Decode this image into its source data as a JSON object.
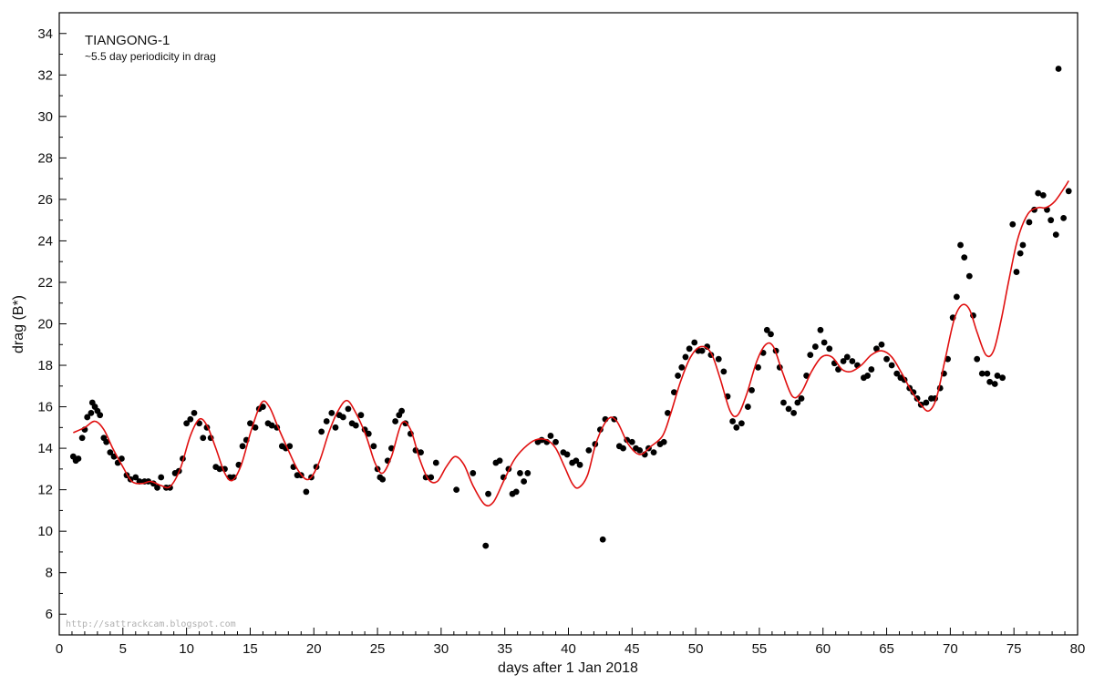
{
  "chart_data": {
    "type": "scatter",
    "title": "TIANGONG-1",
    "subtitle": "~5.5 day periodicity in drag",
    "xlabel": "days after 1 Jan 2018",
    "ylabel": "drag (B*)",
    "xlim": [
      0,
      80
    ],
    "ylim": [
      5,
      35
    ],
    "xticks": [
      0,
      5,
      10,
      15,
      20,
      25,
      30,
      35,
      40,
      45,
      50,
      55,
      60,
      65,
      70,
      75,
      80
    ],
    "yticks": [
      6,
      8,
      10,
      12,
      14,
      16,
      18,
      20,
      22,
      24,
      26,
      28,
      30,
      32,
      34
    ],
    "grid": false,
    "watermark": "http://sattrackcam.blogspot.com",
    "colors": {
      "points": "#000000",
      "fit": "#e01010",
      "axes": "#000000"
    },
    "points": [
      [
        1.1,
        13.6
      ],
      [
        1.3,
        13.4
      ],
      [
        1.5,
        13.5
      ],
      [
        1.8,
        14.5
      ],
      [
        2.0,
        14.9
      ],
      [
        2.2,
        15.5
      ],
      [
        2.5,
        15.7
      ],
      [
        2.6,
        16.2
      ],
      [
        2.8,
        16.0
      ],
      [
        3.0,
        15.8
      ],
      [
        3.2,
        15.6
      ],
      [
        3.5,
        14.5
      ],
      [
        3.7,
        14.3
      ],
      [
        4.0,
        13.8
      ],
      [
        4.3,
        13.6
      ],
      [
        4.6,
        13.3
      ],
      [
        4.9,
        13.5
      ],
      [
        5.3,
        12.7
      ],
      [
        5.6,
        12.5
      ],
      [
        6.0,
        12.6
      ],
      [
        6.3,
        12.4
      ],
      [
        6.7,
        12.4
      ],
      [
        7.0,
        12.4
      ],
      [
        7.4,
        12.3
      ],
      [
        7.7,
        12.1
      ],
      [
        8.0,
        12.6
      ],
      [
        8.4,
        12.1
      ],
      [
        8.7,
        12.1
      ],
      [
        9.1,
        12.8
      ],
      [
        9.4,
        12.9
      ],
      [
        9.7,
        13.5
      ],
      [
        10.0,
        15.2
      ],
      [
        10.3,
        15.4
      ],
      [
        10.6,
        15.7
      ],
      [
        11.0,
        15.2
      ],
      [
        11.3,
        14.5
      ],
      [
        11.6,
        15.0
      ],
      [
        11.9,
        14.5
      ],
      [
        12.3,
        13.1
      ],
      [
        12.6,
        13.0
      ],
      [
        13.0,
        13.0
      ],
      [
        13.4,
        12.6
      ],
      [
        13.7,
        12.6
      ],
      [
        14.1,
        13.2
      ],
      [
        14.4,
        14.1
      ],
      [
        14.7,
        14.4
      ],
      [
        15.0,
        15.2
      ],
      [
        15.4,
        15.0
      ],
      [
        15.7,
        15.9
      ],
      [
        16.0,
        16.0
      ],
      [
        16.4,
        15.2
      ],
      [
        16.7,
        15.1
      ],
      [
        17.1,
        15.0
      ],
      [
        17.5,
        14.1
      ],
      [
        17.8,
        14.0
      ],
      [
        18.1,
        14.1
      ],
      [
        18.4,
        13.1
      ],
      [
        18.7,
        12.7
      ],
      [
        19.0,
        12.7
      ],
      [
        19.4,
        11.9
      ],
      [
        19.8,
        12.6
      ],
      [
        20.2,
        13.1
      ],
      [
        20.6,
        14.8
      ],
      [
        21.0,
        15.3
      ],
      [
        21.4,
        15.7
      ],
      [
        21.7,
        15.0
      ],
      [
        22.0,
        15.6
      ],
      [
        22.3,
        15.5
      ],
      [
        22.7,
        15.9
      ],
      [
        23.0,
        15.2
      ],
      [
        23.3,
        15.1
      ],
      [
        23.7,
        15.6
      ],
      [
        24.0,
        14.9
      ],
      [
        24.3,
        14.7
      ],
      [
        24.7,
        14.1
      ],
      [
        25.0,
        13.0
      ],
      [
        25.2,
        12.6
      ],
      [
        25.4,
        12.5
      ],
      [
        25.8,
        13.4
      ],
      [
        26.1,
        14.0
      ],
      [
        26.4,
        15.3
      ],
      [
        26.7,
        15.6
      ],
      [
        26.9,
        15.8
      ],
      [
        27.2,
        15.2
      ],
      [
        27.6,
        14.7
      ],
      [
        28.0,
        13.9
      ],
      [
        28.4,
        13.8
      ],
      [
        28.8,
        12.6
      ],
      [
        29.2,
        12.6
      ],
      [
        29.6,
        13.3
      ],
      [
        31.2,
        12.0
      ],
      [
        32.5,
        12.8
      ],
      [
        33.5,
        9.3
      ],
      [
        33.7,
        11.8
      ],
      [
        34.3,
        13.3
      ],
      [
        34.6,
        13.4
      ],
      [
        34.9,
        12.6
      ],
      [
        35.3,
        13.0
      ],
      [
        35.6,
        11.8
      ],
      [
        35.9,
        11.9
      ],
      [
        36.2,
        12.8
      ],
      [
        36.5,
        12.4
      ],
      [
        36.8,
        12.8
      ],
      [
        37.6,
        14.3
      ],
      [
        37.9,
        14.4
      ],
      [
        38.3,
        14.3
      ],
      [
        38.6,
        14.6
      ],
      [
        39.0,
        14.3
      ],
      [
        39.6,
        13.8
      ],
      [
        39.9,
        13.7
      ],
      [
        40.3,
        13.3
      ],
      [
        40.6,
        13.4
      ],
      [
        40.9,
        13.2
      ],
      [
        41.6,
        13.9
      ],
      [
        42.1,
        14.2
      ],
      [
        42.5,
        14.9
      ],
      [
        42.7,
        9.6
      ],
      [
        42.9,
        15.4
      ],
      [
        43.6,
        15.4
      ],
      [
        44.0,
        14.1
      ],
      [
        44.3,
        14.0
      ],
      [
        44.6,
        14.4
      ],
      [
        45.0,
        14.3
      ],
      [
        45.3,
        14.0
      ],
      [
        45.6,
        13.9
      ],
      [
        46.0,
        13.7
      ],
      [
        46.3,
        14.0
      ],
      [
        46.7,
        13.8
      ],
      [
        47.2,
        14.2
      ],
      [
        47.5,
        14.3
      ],
      [
        47.8,
        15.7
      ],
      [
        48.3,
        16.7
      ],
      [
        48.6,
        17.5
      ],
      [
        48.9,
        17.9
      ],
      [
        49.2,
        18.4
      ],
      [
        49.5,
        18.8
      ],
      [
        49.9,
        19.1
      ],
      [
        50.2,
        18.7
      ],
      [
        50.5,
        18.7
      ],
      [
        50.9,
        18.9
      ],
      [
        51.2,
        18.5
      ],
      [
        51.8,
        18.3
      ],
      [
        52.2,
        17.7
      ],
      [
        52.5,
        16.5
      ],
      [
        52.9,
        15.3
      ],
      [
        53.2,
        15.0
      ],
      [
        53.6,
        15.2
      ],
      [
        54.1,
        16.0
      ],
      [
        54.4,
        16.8
      ],
      [
        54.9,
        17.9
      ],
      [
        55.3,
        18.6
      ],
      [
        55.6,
        19.7
      ],
      [
        55.9,
        19.5
      ],
      [
        56.3,
        18.7
      ],
      [
        56.6,
        17.9
      ],
      [
        56.9,
        16.2
      ],
      [
        57.3,
        15.9
      ],
      [
        57.7,
        15.7
      ],
      [
        58.0,
        16.2
      ],
      [
        58.3,
        16.4
      ],
      [
        58.7,
        17.5
      ],
      [
        59.0,
        18.5
      ],
      [
        59.4,
        18.9
      ],
      [
        59.8,
        19.7
      ],
      [
        60.1,
        19.1
      ],
      [
        60.5,
        18.8
      ],
      [
        60.9,
        18.1
      ],
      [
        61.2,
        17.8
      ],
      [
        61.6,
        18.2
      ],
      [
        61.9,
        18.4
      ],
      [
        62.3,
        18.2
      ],
      [
        62.7,
        18.0
      ],
      [
        63.2,
        17.4
      ],
      [
        63.5,
        17.5
      ],
      [
        63.8,
        17.8
      ],
      [
        64.2,
        18.8
      ],
      [
        64.6,
        19.0
      ],
      [
        65.0,
        18.3
      ],
      [
        65.4,
        18.0
      ],
      [
        65.8,
        17.6
      ],
      [
        66.1,
        17.4
      ],
      [
        66.4,
        17.3
      ],
      [
        66.8,
        16.9
      ],
      [
        67.1,
        16.7
      ],
      [
        67.4,
        16.4
      ],
      [
        67.7,
        16.1
      ],
      [
        68.1,
        16.2
      ],
      [
        68.5,
        16.4
      ],
      [
        68.8,
        16.4
      ],
      [
        69.2,
        16.9
      ],
      [
        69.5,
        17.6
      ],
      [
        69.8,
        18.3
      ],
      [
        70.2,
        20.3
      ],
      [
        70.5,
        21.3
      ],
      [
        70.8,
        23.8
      ],
      [
        71.1,
        23.2
      ],
      [
        71.5,
        22.3
      ],
      [
        71.8,
        20.4
      ],
      [
        72.1,
        18.3
      ],
      [
        72.5,
        17.6
      ],
      [
        72.9,
        17.6
      ],
      [
        73.1,
        17.2
      ],
      [
        73.5,
        17.1
      ],
      [
        73.7,
        17.5
      ],
      [
        74.1,
        17.4
      ],
      [
        74.9,
        24.8
      ],
      [
        75.2,
        22.5
      ],
      [
        75.5,
        23.4
      ],
      [
        75.7,
        23.8
      ],
      [
        76.2,
        24.9
      ],
      [
        76.6,
        25.5
      ],
      [
        76.9,
        26.3
      ],
      [
        77.3,
        26.2
      ],
      [
        77.6,
        25.5
      ],
      [
        77.9,
        25.0
      ],
      [
        78.3,
        24.3
      ],
      [
        78.5,
        32.3
      ],
      [
        78.9,
        25.1
      ],
      [
        79.3,
        26.4
      ]
    ],
    "fit_line": [
      [
        1.1,
        14.75
      ],
      [
        2.0,
        15.0
      ],
      [
        2.8,
        15.3
      ],
      [
        3.5,
        14.9
      ],
      [
        4.2,
        14.0
      ],
      [
        5.0,
        13.1
      ],
      [
        5.7,
        12.4
      ],
      [
        6.5,
        12.3
      ],
      [
        7.2,
        12.4
      ],
      [
        8.0,
        12.2
      ],
      [
        8.7,
        12.15
      ],
      [
        9.5,
        13.0
      ],
      [
        10.3,
        14.6
      ],
      [
        11.0,
        15.4
      ],
      [
        11.6,
        15.1
      ],
      [
        12.3,
        14.0
      ],
      [
        13.0,
        12.8
      ],
      [
        13.6,
        12.45
      ],
      [
        14.3,
        13.2
      ],
      [
        15.1,
        14.9
      ],
      [
        15.9,
        16.2
      ],
      [
        16.5,
        16.0
      ],
      [
        17.2,
        15.0
      ],
      [
        18.0,
        13.9
      ],
      [
        18.8,
        12.9
      ],
      [
        19.6,
        12.5
      ],
      [
        20.4,
        13.3
      ],
      [
        21.2,
        14.8
      ],
      [
        21.9,
        15.8
      ],
      [
        22.6,
        16.3
      ],
      [
        23.3,
        15.7
      ],
      [
        24.1,
        14.6
      ],
      [
        24.8,
        13.3
      ],
      [
        25.4,
        12.8
      ],
      [
        26.1,
        13.6
      ],
      [
        26.9,
        15.2
      ],
      [
        27.6,
        14.9
      ],
      [
        28.3,
        13.5
      ],
      [
        29.0,
        12.5
      ],
      [
        29.7,
        12.4
      ],
      [
        30.4,
        13.1
      ],
      [
        31.1,
        13.6
      ],
      [
        31.8,
        13.2
      ],
      [
        32.5,
        12.2
      ],
      [
        33.4,
        11.3
      ],
      [
        34.1,
        11.4
      ],
      [
        34.9,
        12.4
      ],
      [
        35.7,
        13.4
      ],
      [
        36.5,
        14.0
      ],
      [
        37.4,
        14.4
      ],
      [
        38.3,
        14.4
      ],
      [
        39.0,
        14.0
      ],
      [
        39.7,
        13.1
      ],
      [
        40.3,
        12.3
      ],
      [
        40.8,
        12.1
      ],
      [
        41.5,
        12.7
      ],
      [
        42.2,
        14.3
      ],
      [
        43.1,
        15.4
      ],
      [
        43.8,
        15.3
      ],
      [
        44.7,
        14.2
      ],
      [
        45.6,
        13.7
      ],
      [
        46.5,
        14.1
      ],
      [
        47.4,
        14.6
      ],
      [
        48.0,
        15.6
      ],
      [
        48.8,
        17.2
      ],
      [
        49.6,
        18.4
      ],
      [
        50.4,
        18.9
      ],
      [
        51.2,
        18.6
      ],
      [
        51.9,
        17.4
      ],
      [
        52.7,
        15.8
      ],
      [
        53.3,
        15.6
      ],
      [
        54.0,
        16.6
      ],
      [
        54.8,
        18.2
      ],
      [
        55.5,
        19.0
      ],
      [
        56.1,
        18.9
      ],
      [
        56.8,
        17.7
      ],
      [
        57.6,
        16.5
      ],
      [
        58.3,
        16.7
      ],
      [
        59.1,
        17.7
      ],
      [
        59.9,
        18.4
      ],
      [
        60.7,
        18.4
      ],
      [
        61.5,
        17.8
      ],
      [
        62.2,
        17.7
      ],
      [
        63.0,
        18.0
      ],
      [
        63.8,
        18.5
      ],
      [
        64.6,
        18.7
      ],
      [
        65.4,
        18.4
      ],
      [
        66.2,
        17.6
      ],
      [
        67.0,
        16.7
      ],
      [
        67.7,
        16.1
      ],
      [
        68.3,
        15.8
      ],
      [
        68.9,
        16.4
      ],
      [
        69.6,
        18.3
      ],
      [
        70.3,
        20.2
      ],
      [
        70.9,
        20.9
      ],
      [
        71.5,
        20.7
      ],
      [
        72.1,
        19.6
      ],
      [
        72.8,
        18.5
      ],
      [
        73.4,
        18.7
      ],
      [
        74.0,
        20.2
      ],
      [
        74.6,
        22.1
      ],
      [
        75.3,
        24.1
      ],
      [
        76.1,
        25.3
      ],
      [
        76.9,
        25.6
      ],
      [
        77.5,
        25.6
      ],
      [
        78.2,
        25.9
      ],
      [
        79.0,
        26.6
      ],
      [
        79.3,
        26.9
      ]
    ]
  }
}
